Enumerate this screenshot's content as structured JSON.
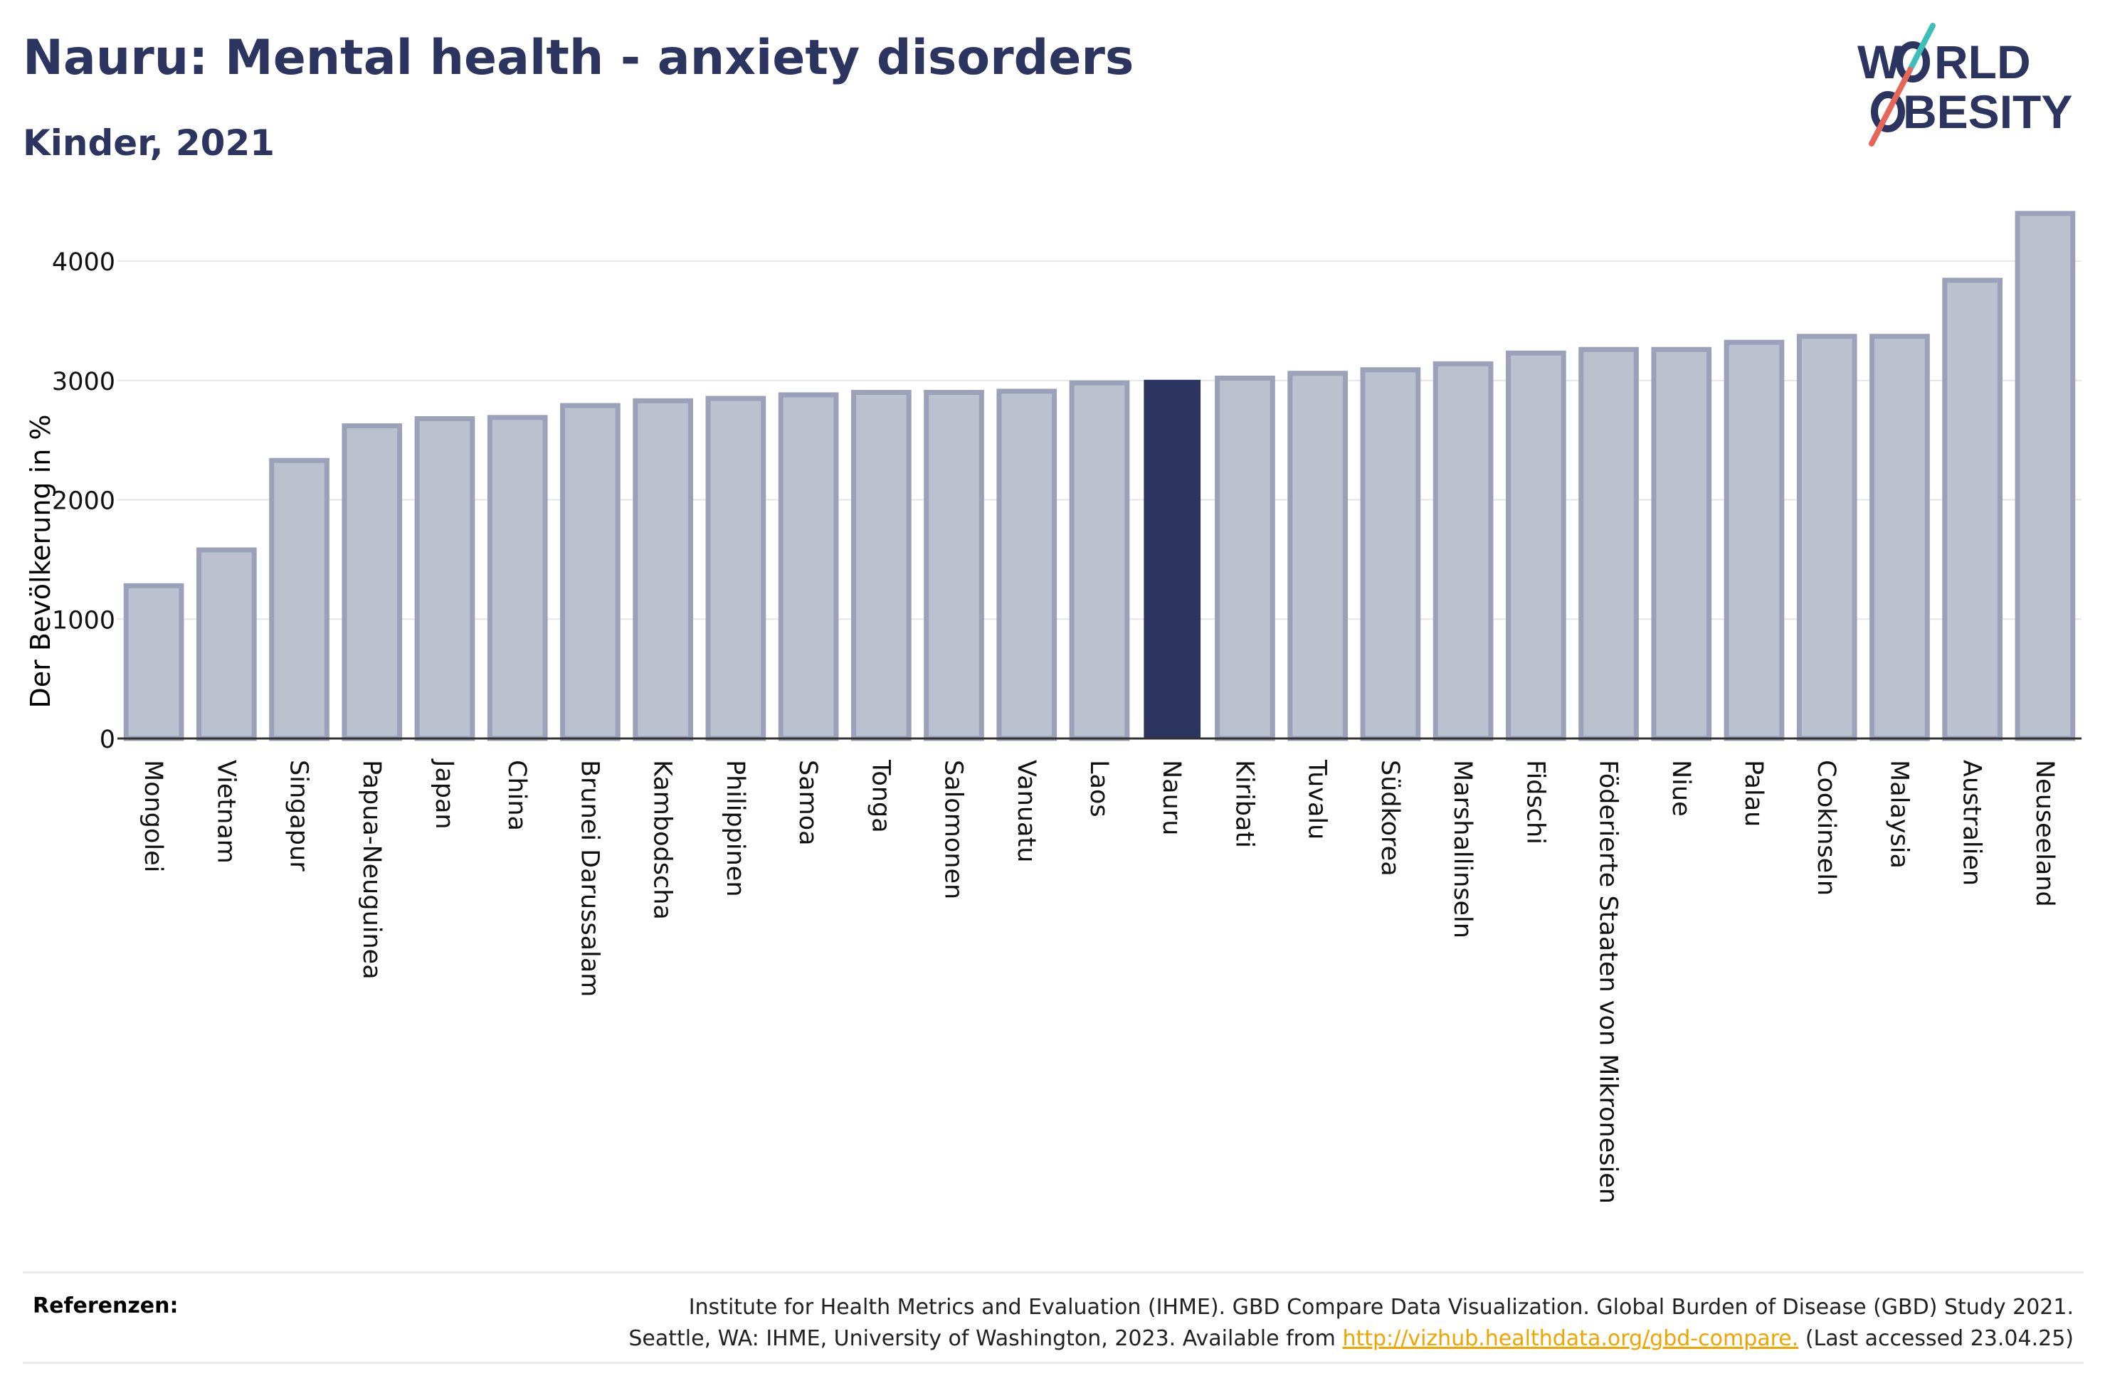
{
  "page": {
    "title": "Nauru: Mental health - anxiety disorders",
    "subtitle": "Kinder, 2021",
    "logo": {
      "line1": "W",
      "line1_rest": "RLD",
      "line2": "BESITY",
      "accent_colors": [
        "#3dbfb8",
        "#e5675a"
      ]
    }
  },
  "colors": {
    "title": "#2b3560",
    "bar": "#bcc1cf",
    "bar_stroke": "#9aa1b8",
    "highlight": "#2b3560",
    "link": "#f0a400"
  },
  "chart_data": {
    "type": "bar",
    "title": "Nauru: Mental health - anxiety disorders",
    "subtitle": "Kinder, 2021",
    "xlabel": "",
    "ylabel": "Der Bevölkerung in %",
    "ylim": [
      0,
      4400
    ],
    "yticks": [
      0,
      1000,
      2000,
      3000,
      4000
    ],
    "grid": true,
    "highlight": "Nauru",
    "categories": [
      "Mongolei",
      "Vietnam",
      "Singapur",
      "Papua-Neuguinea",
      "Japan",
      "China",
      "Brunei Darussalam",
      "Kambodscha",
      "Philippinen",
      "Samoa",
      "Tonga",
      "Salomonen",
      "Vanuatu",
      "Laos",
      "Nauru",
      "Kiribati",
      "Tuvalu",
      "Südkorea",
      "Marshallinseln",
      "Fidschi",
      "Föderierte Staaten von Mikronesien",
      "Niue",
      "Palau",
      "Cookinseln",
      "Malaysia",
      "Australien",
      "Neuseeland"
    ],
    "values": [
      1280,
      1580,
      2330,
      2620,
      2680,
      2690,
      2790,
      2830,
      2850,
      2880,
      2900,
      2900,
      2910,
      2980,
      3000,
      3020,
      3060,
      3090,
      3140,
      3230,
      3260,
      3260,
      3320,
      3370,
      3370,
      3840,
      4400
    ]
  },
  "references": {
    "label": "Referenzen:",
    "line1": "Institute for Health Metrics and Evaluation (IHME). GBD Compare Data Visualization. Global Burden of Disease (GBD) Study 2021.",
    "line2_before": "Seattle, WA: IHME, University of Washington, 2023. Available from ",
    "link": "http://vizhub.healthdata.org/gbd-compare.",
    "line2_after": " (Last accessed 23.04.25)"
  }
}
